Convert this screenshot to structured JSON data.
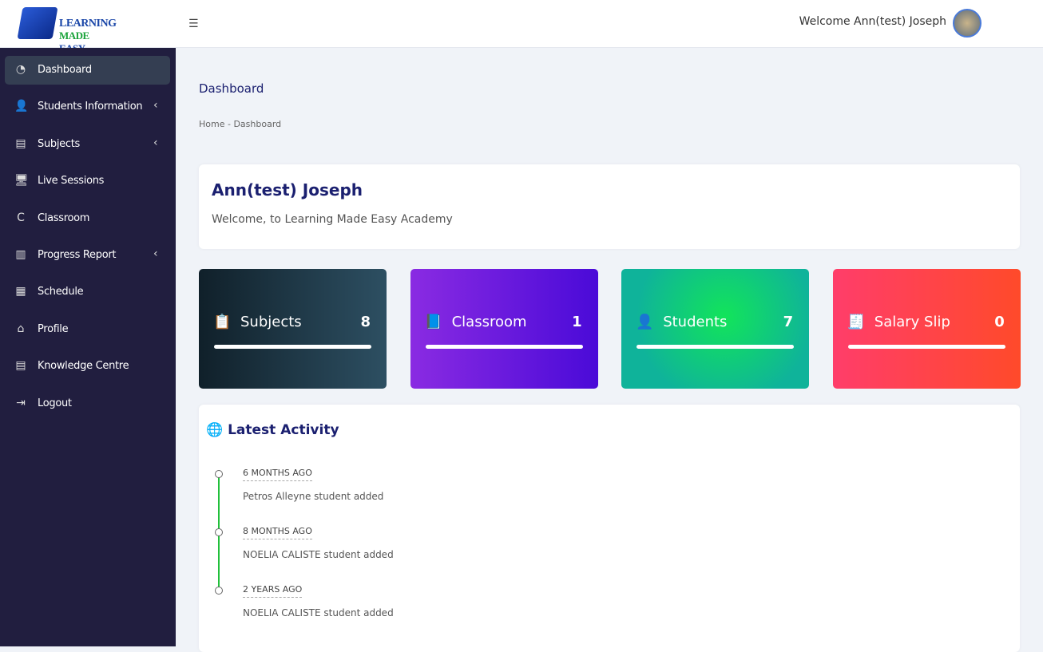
{
  "header": {
    "logo_text_1": "LEARNING",
    "logo_text_2a": "MADE",
    "logo_text_2b": "EASY",
    "menu_icon": "hamburger-icon",
    "welcome": "Welcome Ann(test) Joseph"
  },
  "sidebar": {
    "items": [
      {
        "label": "Dashboard",
        "icon": "◔",
        "active": true,
        "chevron": ""
      },
      {
        "label": "Students Information",
        "icon": "👤",
        "chevron": "‹"
      },
      {
        "label": "Subjects",
        "icon": "▤",
        "chevron": "‹"
      },
      {
        "label": "Live Sessions",
        "icon": "🖥",
        "chevron": ""
      },
      {
        "label": "Classroom",
        "icon": "C",
        "chevron": ""
      },
      {
        "label": "Progress Report",
        "icon": "▥",
        "chevron": "‹"
      },
      {
        "label": "Schedule",
        "icon": "▦",
        "chevron": ""
      },
      {
        "label": "Profile",
        "icon": "⌂",
        "chevron": ""
      },
      {
        "label": "Knowledge Centre",
        "icon": "▤",
        "chevron": ""
      },
      {
        "label": "Logout",
        "icon": "⇥",
        "chevron": ""
      }
    ]
  },
  "page": {
    "title": "Dashboard",
    "breadcrumb": "Home - Dashboard"
  },
  "user_card": {
    "name": "Ann(test) Joseph",
    "message": "Welcome, to Learning Made Easy Academy"
  },
  "stats": [
    {
      "label": "Subjects",
      "value": "8",
      "icon": "📋",
      "gradient": [
        "#10202a",
        "#2d4f62"
      ]
    },
    {
      "label": "Classroom",
      "value": "1",
      "icon": "📘",
      "gradient": [
        "#8a2be2",
        "#4a0ad8"
      ]
    },
    {
      "label": "Students",
      "value": "7",
      "icon": "👤",
      "gradient": [
        "#0fb39a",
        "#12e45a"
      ]
    },
    {
      "label": "Salary Slip",
      "value": "0",
      "icon": "🧾",
      "gradient": [
        "#ff3d6a",
        "#ff4a2a"
      ]
    }
  ],
  "activity": {
    "title": "Latest Activity",
    "items": [
      {
        "when": "6 MONTHS AGO",
        "what": "Petros Alleyne student added"
      },
      {
        "when": "8 MONTHS AGO",
        "what": "NOELIA CALISTE student added"
      },
      {
        "when": "2 YEARS AGO",
        "what": "NOELIA CALISTE student added"
      }
    ]
  }
}
